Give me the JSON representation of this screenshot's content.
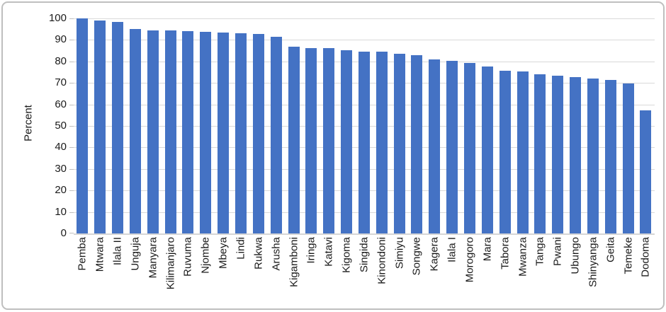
{
  "chart_data": {
    "type": "bar",
    "title": "",
    "xlabel": "",
    "ylabel": "Percent",
    "ylim": [
      0,
      100
    ],
    "yticks": [
      0,
      10,
      20,
      30,
      40,
      50,
      60,
      70,
      80,
      90,
      100
    ],
    "grid": true,
    "legend": false,
    "categories": [
      "Pemba",
      "Mtwara",
      "Ilala II",
      "Unguja",
      "Manyara",
      "Kilimanjaro",
      "Ruvuma",
      "Njombe",
      "Mbeya",
      "Lindi",
      "Rukwa",
      "Arusha",
      "Kigamboni",
      "Iringa",
      "Katavi",
      "Kigoma",
      "Singida",
      "Kinondoni",
      "Simiyu",
      "Songwe",
      "Kagera",
      "Ilala I",
      "Morogoro",
      "Mara",
      "Tabora",
      "Mwanza",
      "Tanga",
      "Pwani",
      "Ubungo",
      "Shinyanga",
      "Geita",
      "Temeke",
      "Dodoma"
    ],
    "values": [
      100,
      99,
      98.5,
      95.1,
      94.5,
      94.3,
      94.2,
      93.7,
      93.4,
      93.1,
      92.7,
      91.3,
      86.9,
      86.2,
      86.1,
      85.2,
      84.7,
      84.5,
      83.6,
      83.0,
      80.8,
      80.4,
      79.2,
      77.6,
      75.7,
      75.2,
      74.0,
      73.5,
      72.8,
      72.1,
      71.5,
      69.8,
      57.4
    ]
  },
  "colors": {
    "bar": "#4472c4",
    "gridline": "#d9d9d9",
    "axis_line": "#d6d6d6",
    "tick_mark": "#bfbfbf",
    "text": "#1a1a1a",
    "frame_border": "#bfbfbf",
    "background": "#ffffff"
  }
}
